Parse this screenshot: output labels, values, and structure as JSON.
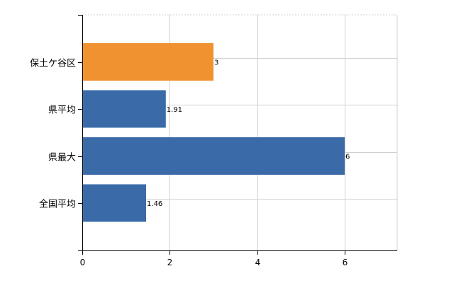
{
  "chart_data": {
    "type": "bar",
    "orientation": "horizontal",
    "categories": [
      "保土ケ谷区",
      "県平均",
      "県最大",
      "全国平均"
    ],
    "values": [
      3,
      1.91,
      6,
      1.46
    ],
    "data_labels": [
      "3",
      "1.91",
      "6",
      "1.46"
    ],
    "bar_colors": [
      "#f0922f",
      "#3a6ba8",
      "#3a6ba8",
      "#3a6ba8"
    ],
    "xlim": [
      0,
      7.2
    ],
    "x_ticks": [
      0,
      2,
      4,
      6
    ],
    "x_tick_labels": [
      "0",
      "2",
      "4",
      "6"
    ],
    "grid": true,
    "title": "",
    "xlabel": "",
    "ylabel": ""
  }
}
